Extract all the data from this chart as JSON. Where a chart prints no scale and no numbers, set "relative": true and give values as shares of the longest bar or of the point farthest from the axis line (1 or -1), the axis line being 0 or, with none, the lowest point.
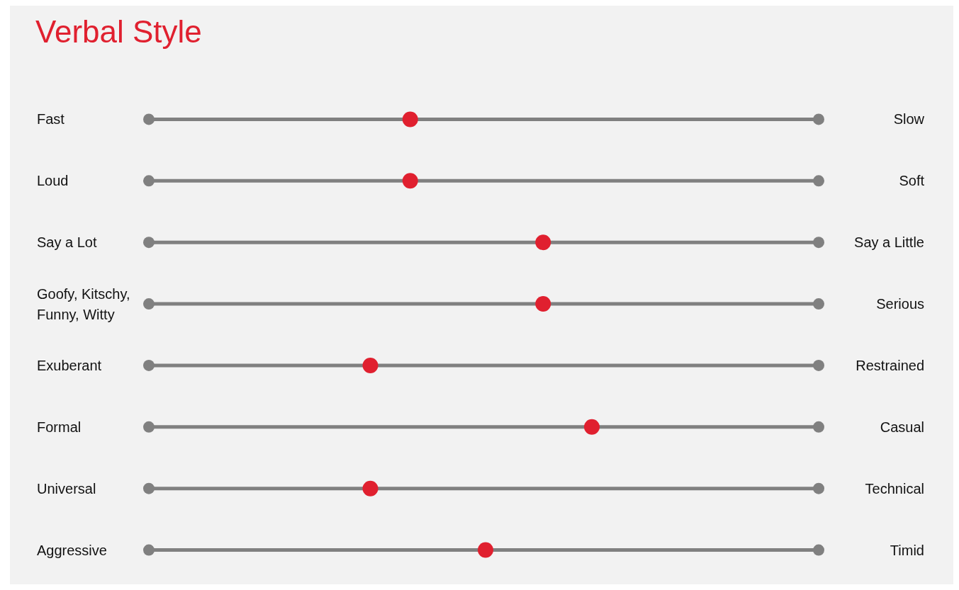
{
  "chart_data": {
    "type": "scatter",
    "title": "Verbal Style",
    "categories": [
      "Fast",
      "Loud",
      "Say a Lot",
      "Goofy, Kitschy, Funny, Witty",
      "Exuberant",
      "Formal",
      "Universal",
      "Aggressive"
    ],
    "y2_categories": [
      "Slow",
      "Soft",
      "Say a Little",
      "Serious",
      "Restrained",
      "Casual",
      "Technical",
      "Timid"
    ],
    "orientation": "horizontal",
    "relative": true,
    "series": [
      {
        "color": "#e0202f",
        "values": [
          0.59,
          0.59,
          0.89,
          0.89,
          0.5,
          1,
          0.5,
          0.76
        ]
      }
    ],
    "grid": "y",
    "marker": "circle"
  }
}
